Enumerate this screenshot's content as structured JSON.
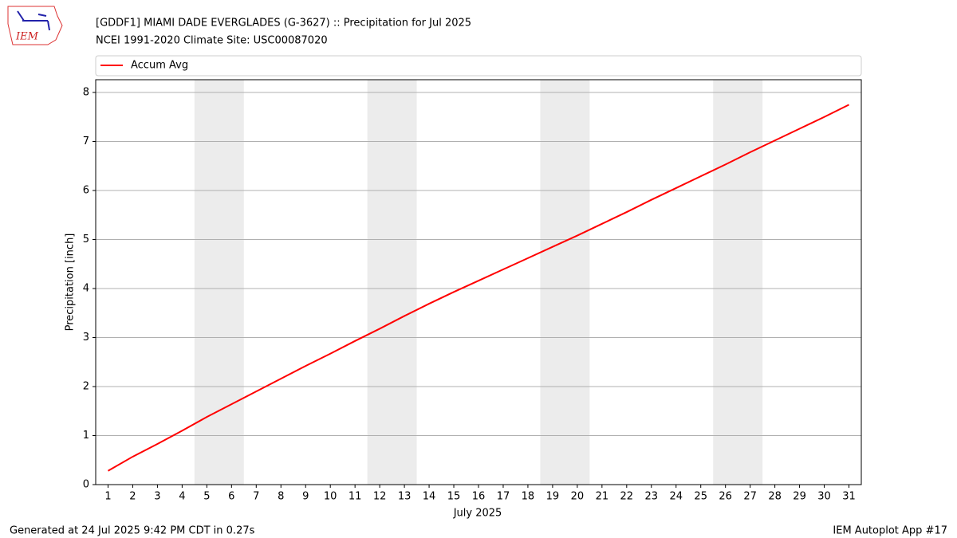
{
  "logo_text": "IEM",
  "chart_data": {
    "type": "line",
    "title": "[GDDF1] MIAMI DADE EVERGLADES  (G-3627) :: Precipitation for Jul 2025",
    "subtitle": "NCEI 1991-2020 Climate Site: USC00087020",
    "x_label": "July 2025",
    "y_label": "Precipitation [inch]",
    "x": [
      1,
      2,
      3,
      4,
      5,
      6,
      7,
      8,
      9,
      10,
      11,
      12,
      13,
      14,
      15,
      16,
      17,
      18,
      19,
      20,
      21,
      22,
      23,
      24,
      25,
      26,
      27,
      28,
      29,
      30,
      31
    ],
    "series": [
      {
        "name": "Accum Avg",
        "color": "#ff0000",
        "values": [
          0.28,
          0.57,
          0.83,
          1.1,
          1.38,
          1.64,
          1.9,
          2.16,
          2.42,
          2.67,
          2.93,
          3.18,
          3.44,
          3.69,
          3.93,
          4.16,
          4.39,
          4.62,
          4.85,
          5.08,
          5.32,
          5.56,
          5.81,
          6.05,
          6.29,
          6.53,
          6.78,
          7.02,
          7.26,
          7.5,
          7.75
        ]
      }
    ],
    "shaded_spans": [
      [
        4.5,
        6.5
      ],
      [
        11.5,
        13.5
      ],
      [
        18.5,
        20.5
      ],
      [
        25.5,
        27.5
      ]
    ],
    "shade_color": "#ececec",
    "xlim": [
      0.5,
      31.5
    ],
    "xticks": [
      1,
      2,
      3,
      4,
      5,
      6,
      7,
      8,
      9,
      10,
      11,
      12,
      13,
      14,
      15,
      16,
      17,
      18,
      19,
      20,
      21,
      22,
      23,
      24,
      25,
      26,
      27,
      28,
      29,
      30,
      31
    ],
    "ylim": [
      0,
      8.26
    ],
    "yticks": [
      0,
      1,
      2,
      3,
      4,
      5,
      6,
      7,
      8
    ],
    "grid": true,
    "legend": "top",
    "footer_left": "Generated at 24 Jul 2025 9:42 PM CDT in 0.27s",
    "footer_right": "IEM Autoplot App #17"
  }
}
